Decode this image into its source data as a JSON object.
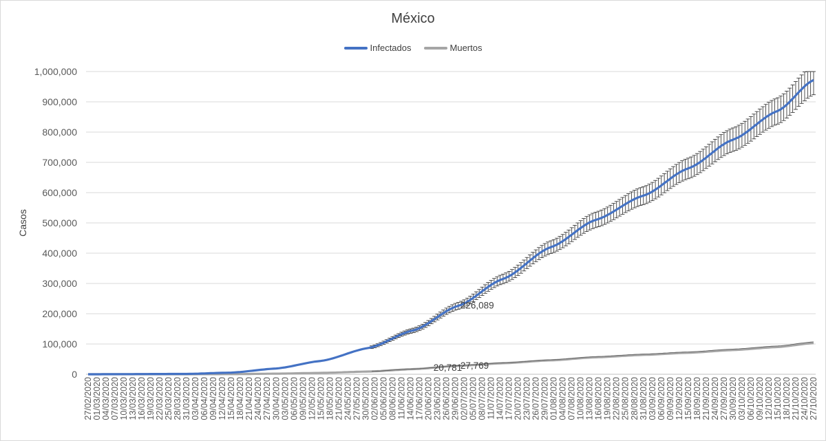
{
  "chart_data": {
    "type": "line",
    "title": "México",
    "xlabel": "",
    "ylabel": "Casos",
    "ylim": [
      0,
      1000000
    ],
    "ytick_labels": [
      "0",
      "100,000",
      "200,000",
      "300,000",
      "400,000",
      "500,000",
      "600,000",
      "700,000",
      "800,000",
      "900,000",
      "1,000,000"
    ],
    "ytick_values": [
      0,
      100000,
      200000,
      300000,
      400000,
      500000,
      600000,
      700000,
      800000,
      900000,
      1000000
    ],
    "x_start": "27/02/2020",
    "x_tick_step_days": 3,
    "x_tick_labels": [
      "27/02/2020",
      "01/03/2020",
      "04/03/2020",
      "07/03/2020",
      "10/03/2020",
      "13/03/2020",
      "16/03/2020",
      "19/03/2020",
      "22/03/2020",
      "25/03/2020",
      "28/03/2020",
      "31/03/2020",
      "03/04/2020",
      "06/04/2020",
      "09/04/2020",
      "12/04/2020",
      "15/04/2020",
      "18/04/2020",
      "21/04/2020",
      "24/04/2020",
      "27/04/2020",
      "30/04/2020",
      "03/05/2020",
      "06/05/2020",
      "09/05/2020",
      "12/05/2020",
      "15/05/2020",
      "18/05/2020",
      "21/05/2020",
      "24/05/2020",
      "27/05/2020",
      "30/05/2020",
      "02/06/2020",
      "05/06/2020",
      "08/06/2020",
      "11/06/2020",
      "14/06/2020",
      "17/06/2020",
      "20/06/2020",
      "23/06/2020",
      "26/06/2020",
      "29/06/2020",
      "02/07/2020",
      "05/07/2020",
      "08/07/2020",
      "11/07/2020",
      "14/07/2020",
      "17/07/2020",
      "20/07/2020",
      "23/07/2020",
      "26/07/2020",
      "29/07/2020",
      "01/08/2020",
      "04/08/2020",
      "07/08/2020",
      "10/08/2020",
      "13/08/2020",
      "16/08/2020",
      "19/08/2020",
      "22/08/2020",
      "25/08/2020",
      "28/08/2020",
      "31/08/2020",
      "03/09/2020",
      "06/09/2020",
      "09/09/2020",
      "12/09/2020",
      "15/09/2020",
      "18/09/2020",
      "21/09/2020",
      "24/09/2020",
      "27/09/2020",
      "30/09/2020",
      "03/10/2020",
      "06/10/2020",
      "09/10/2020",
      "12/10/2020",
      "15/10/2020",
      "18/10/2020",
      "21/10/2020",
      "24/10/2020",
      "27/10/2020"
    ],
    "legend_position": "top",
    "grid": true,
    "series": [
      {
        "name": "Infectados",
        "color": "#4472c4",
        "x": [
          "27/02/2020",
          "31/03/2020",
          "15/04/2020",
          "30/04/2020",
          "15/05/2020",
          "31/05/2020",
          "15/06/2020",
          "30/06/2020",
          "15/07/2020",
          "31/07/2020",
          "15/08/2020",
          "31/08/2020",
          "15/09/2020",
          "30/09/2020",
          "15/10/2020",
          "27/10/2020"
        ],
        "y": [
          0,
          1200,
          5500,
          19000,
          44000,
          87000,
          145000,
          226089,
          315000,
          420000,
          510000,
          590000,
          680000,
          775000,
          870000,
          972000
        ]
      },
      {
        "name": "Muertos",
        "color": "#a5a5a5",
        "x": [
          "27/02/2020",
          "31/03/2020",
          "15/04/2020",
          "30/04/2020",
          "15/05/2020",
          "31/05/2020",
          "15/06/2020",
          "30/06/2020",
          "15/07/2020",
          "31/07/2020",
          "15/08/2020",
          "31/08/2020",
          "15/09/2020",
          "30/09/2020",
          "15/10/2020",
          "27/10/2020"
        ],
        "y": [
          0,
          50,
          400,
          2000,
          4500,
          9000,
          17000,
          27769,
          36500,
          46000,
          56000,
          64000,
          71000,
          80000,
          90000,
          103000
        ]
      }
    ],
    "error_bars": {
      "series": "Infectados",
      "plus_minus_fraction": 0.05,
      "start": "01/06/2020"
    },
    "annotations": [
      {
        "text": "226,089",
        "x": "30/06/2020",
        "y": 226089,
        "series": "Infectados"
      },
      {
        "text": "20,781",
        "x": "21/06/2020",
        "y": 20781,
        "series": "Muertos"
      },
      {
        "text": "27,769",
        "x": "30/06/2020",
        "y": 27769,
        "series": "Muertos"
      }
    ]
  }
}
